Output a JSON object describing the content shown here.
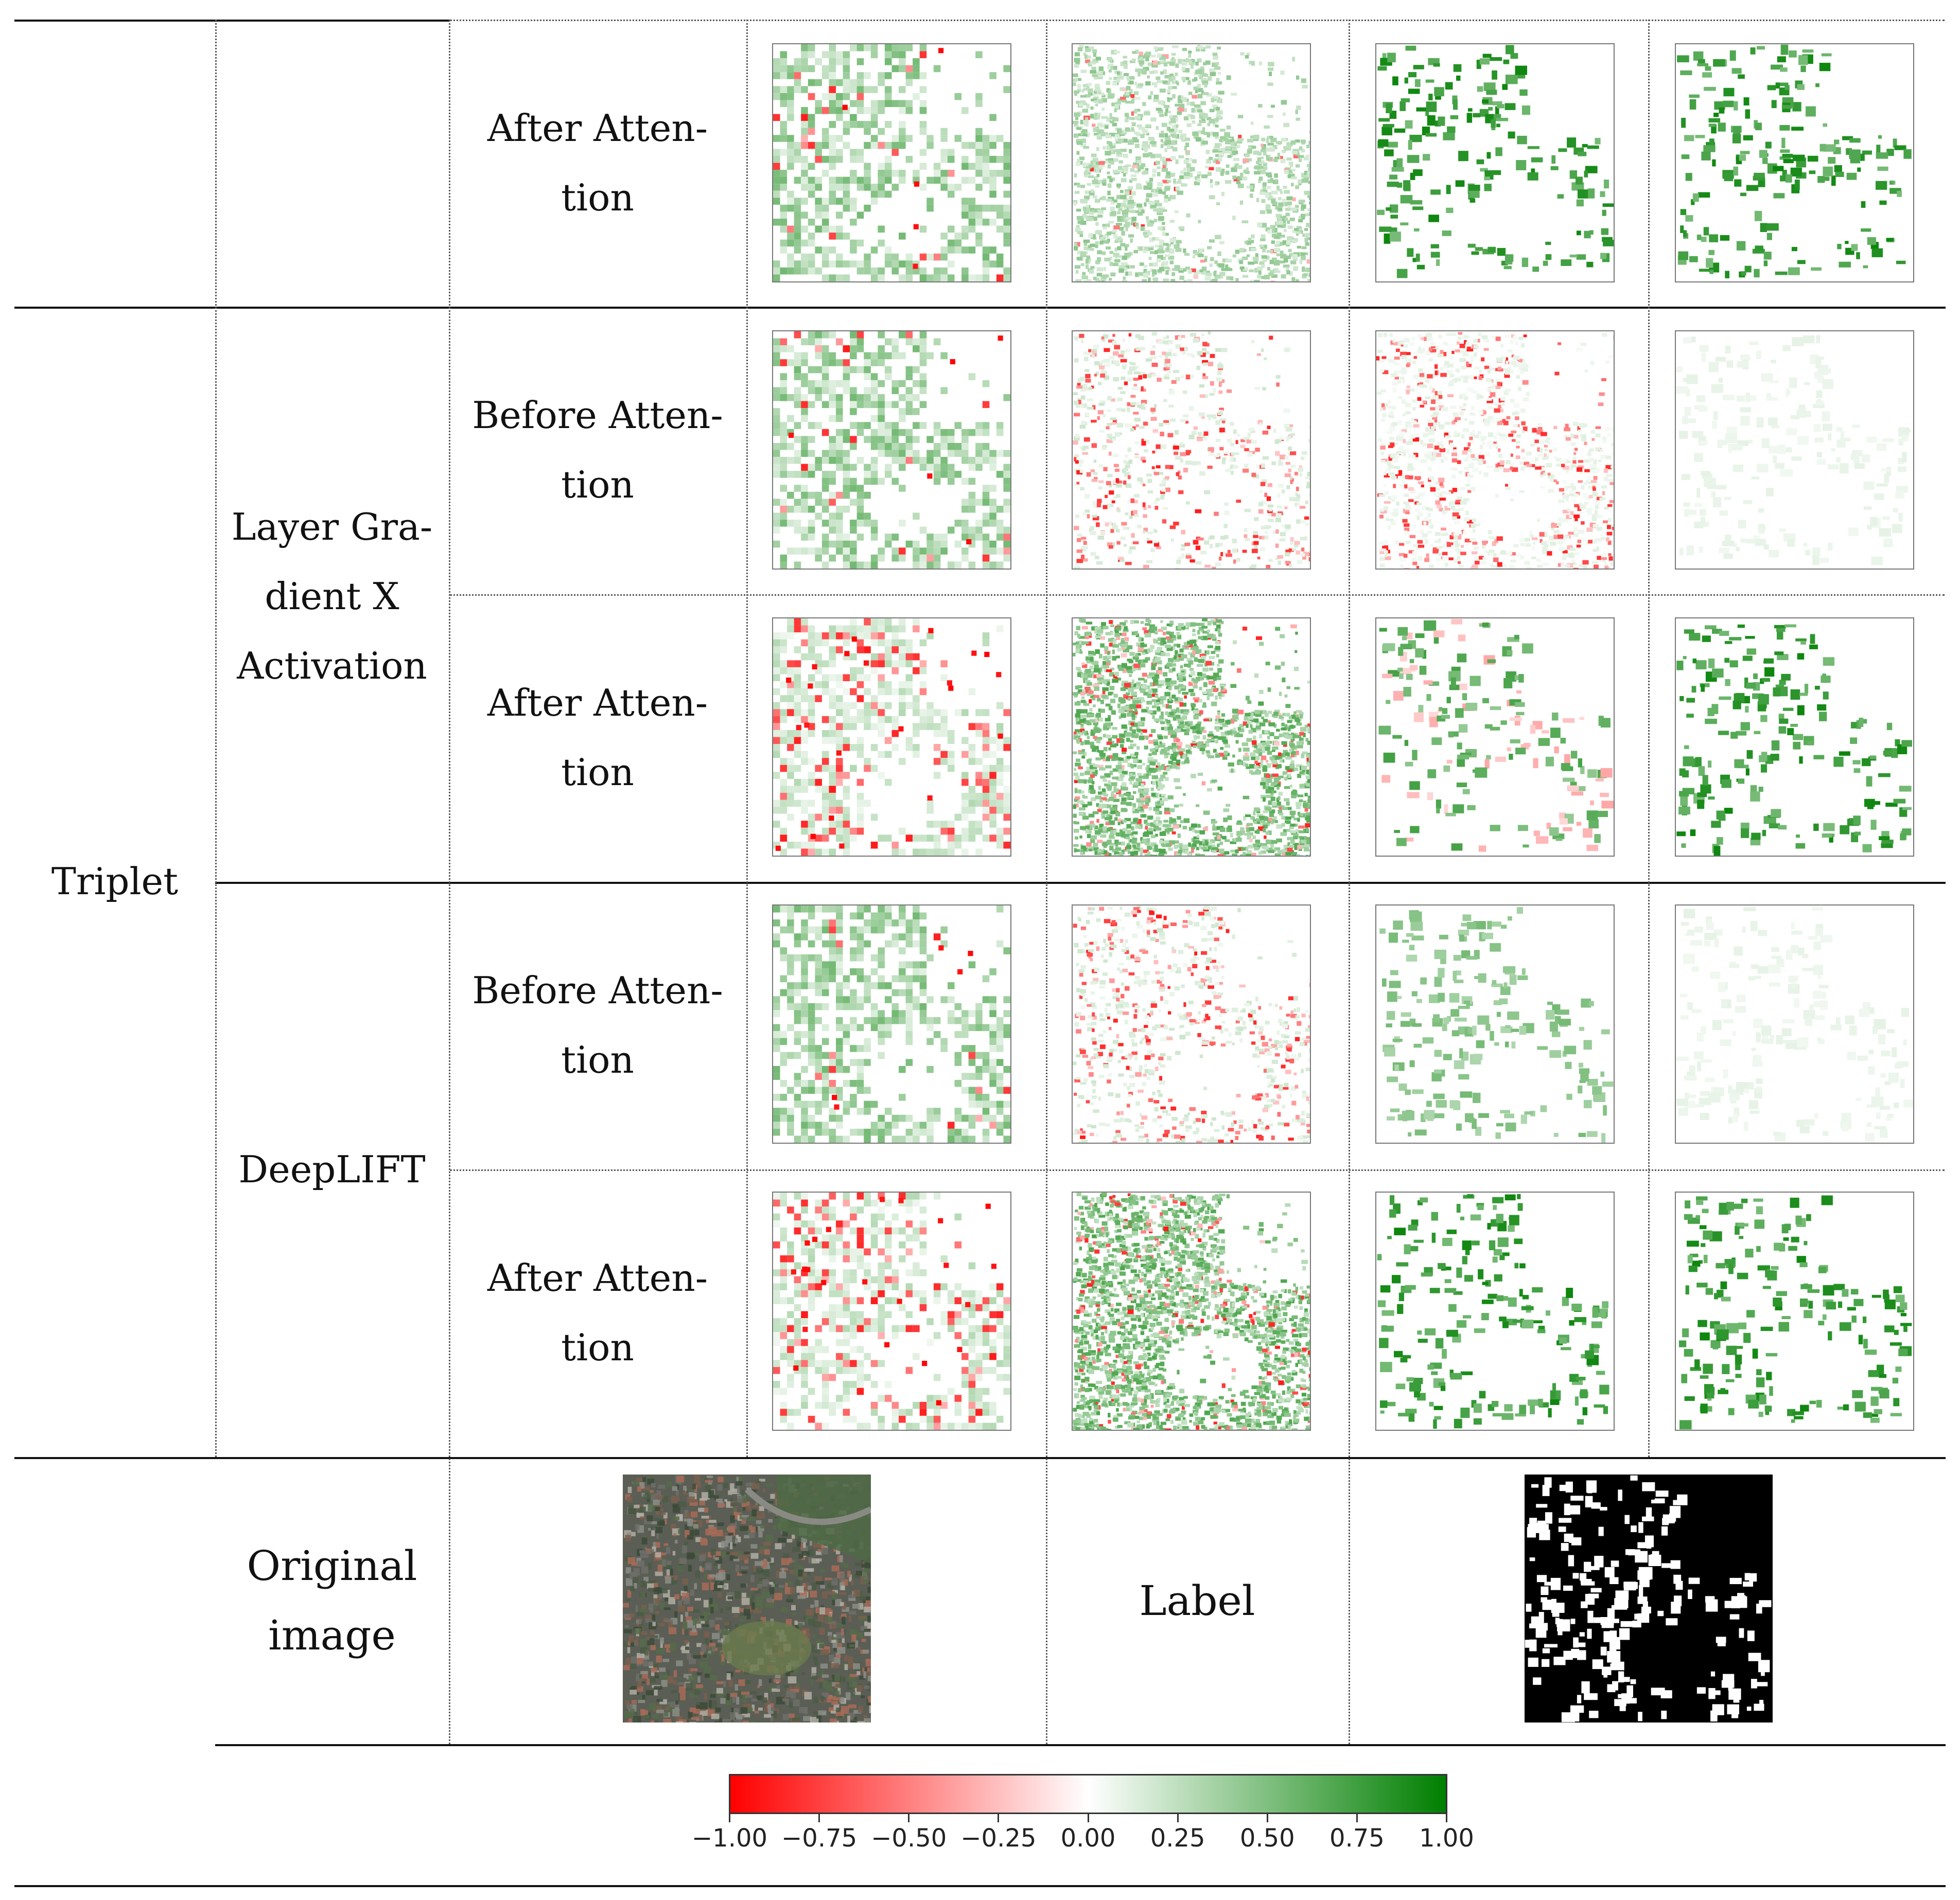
{
  "table": {
    "group": "Triplet",
    "methods": [
      {
        "name": "Layer Gradient X Activation",
        "lines": [
          "Layer Gra-",
          "dient X",
          "Activation"
        ]
      },
      {
        "name": "DeepLIFT",
        "lines": [
          "DeepLIFT"
        ]
      }
    ],
    "stages": {
      "before": [
        "Before Atten-",
        "tion"
      ],
      "after": [
        "After Atten-",
        "tion"
      ]
    },
    "original_label": [
      "Original",
      "image"
    ],
    "label_label": "Label"
  },
  "colorbar": {
    "ticks": [
      "−1.00",
      "−0.75",
      "−0.50",
      "−0.25",
      "0.00",
      "0.25",
      "0.50",
      "0.75",
      "1.00"
    ],
    "range": [
      -1.0,
      1.0
    ],
    "colors": {
      "negative": "#ff0000",
      "zero": "#ffffff",
      "positive": "#007f00"
    }
  }
}
